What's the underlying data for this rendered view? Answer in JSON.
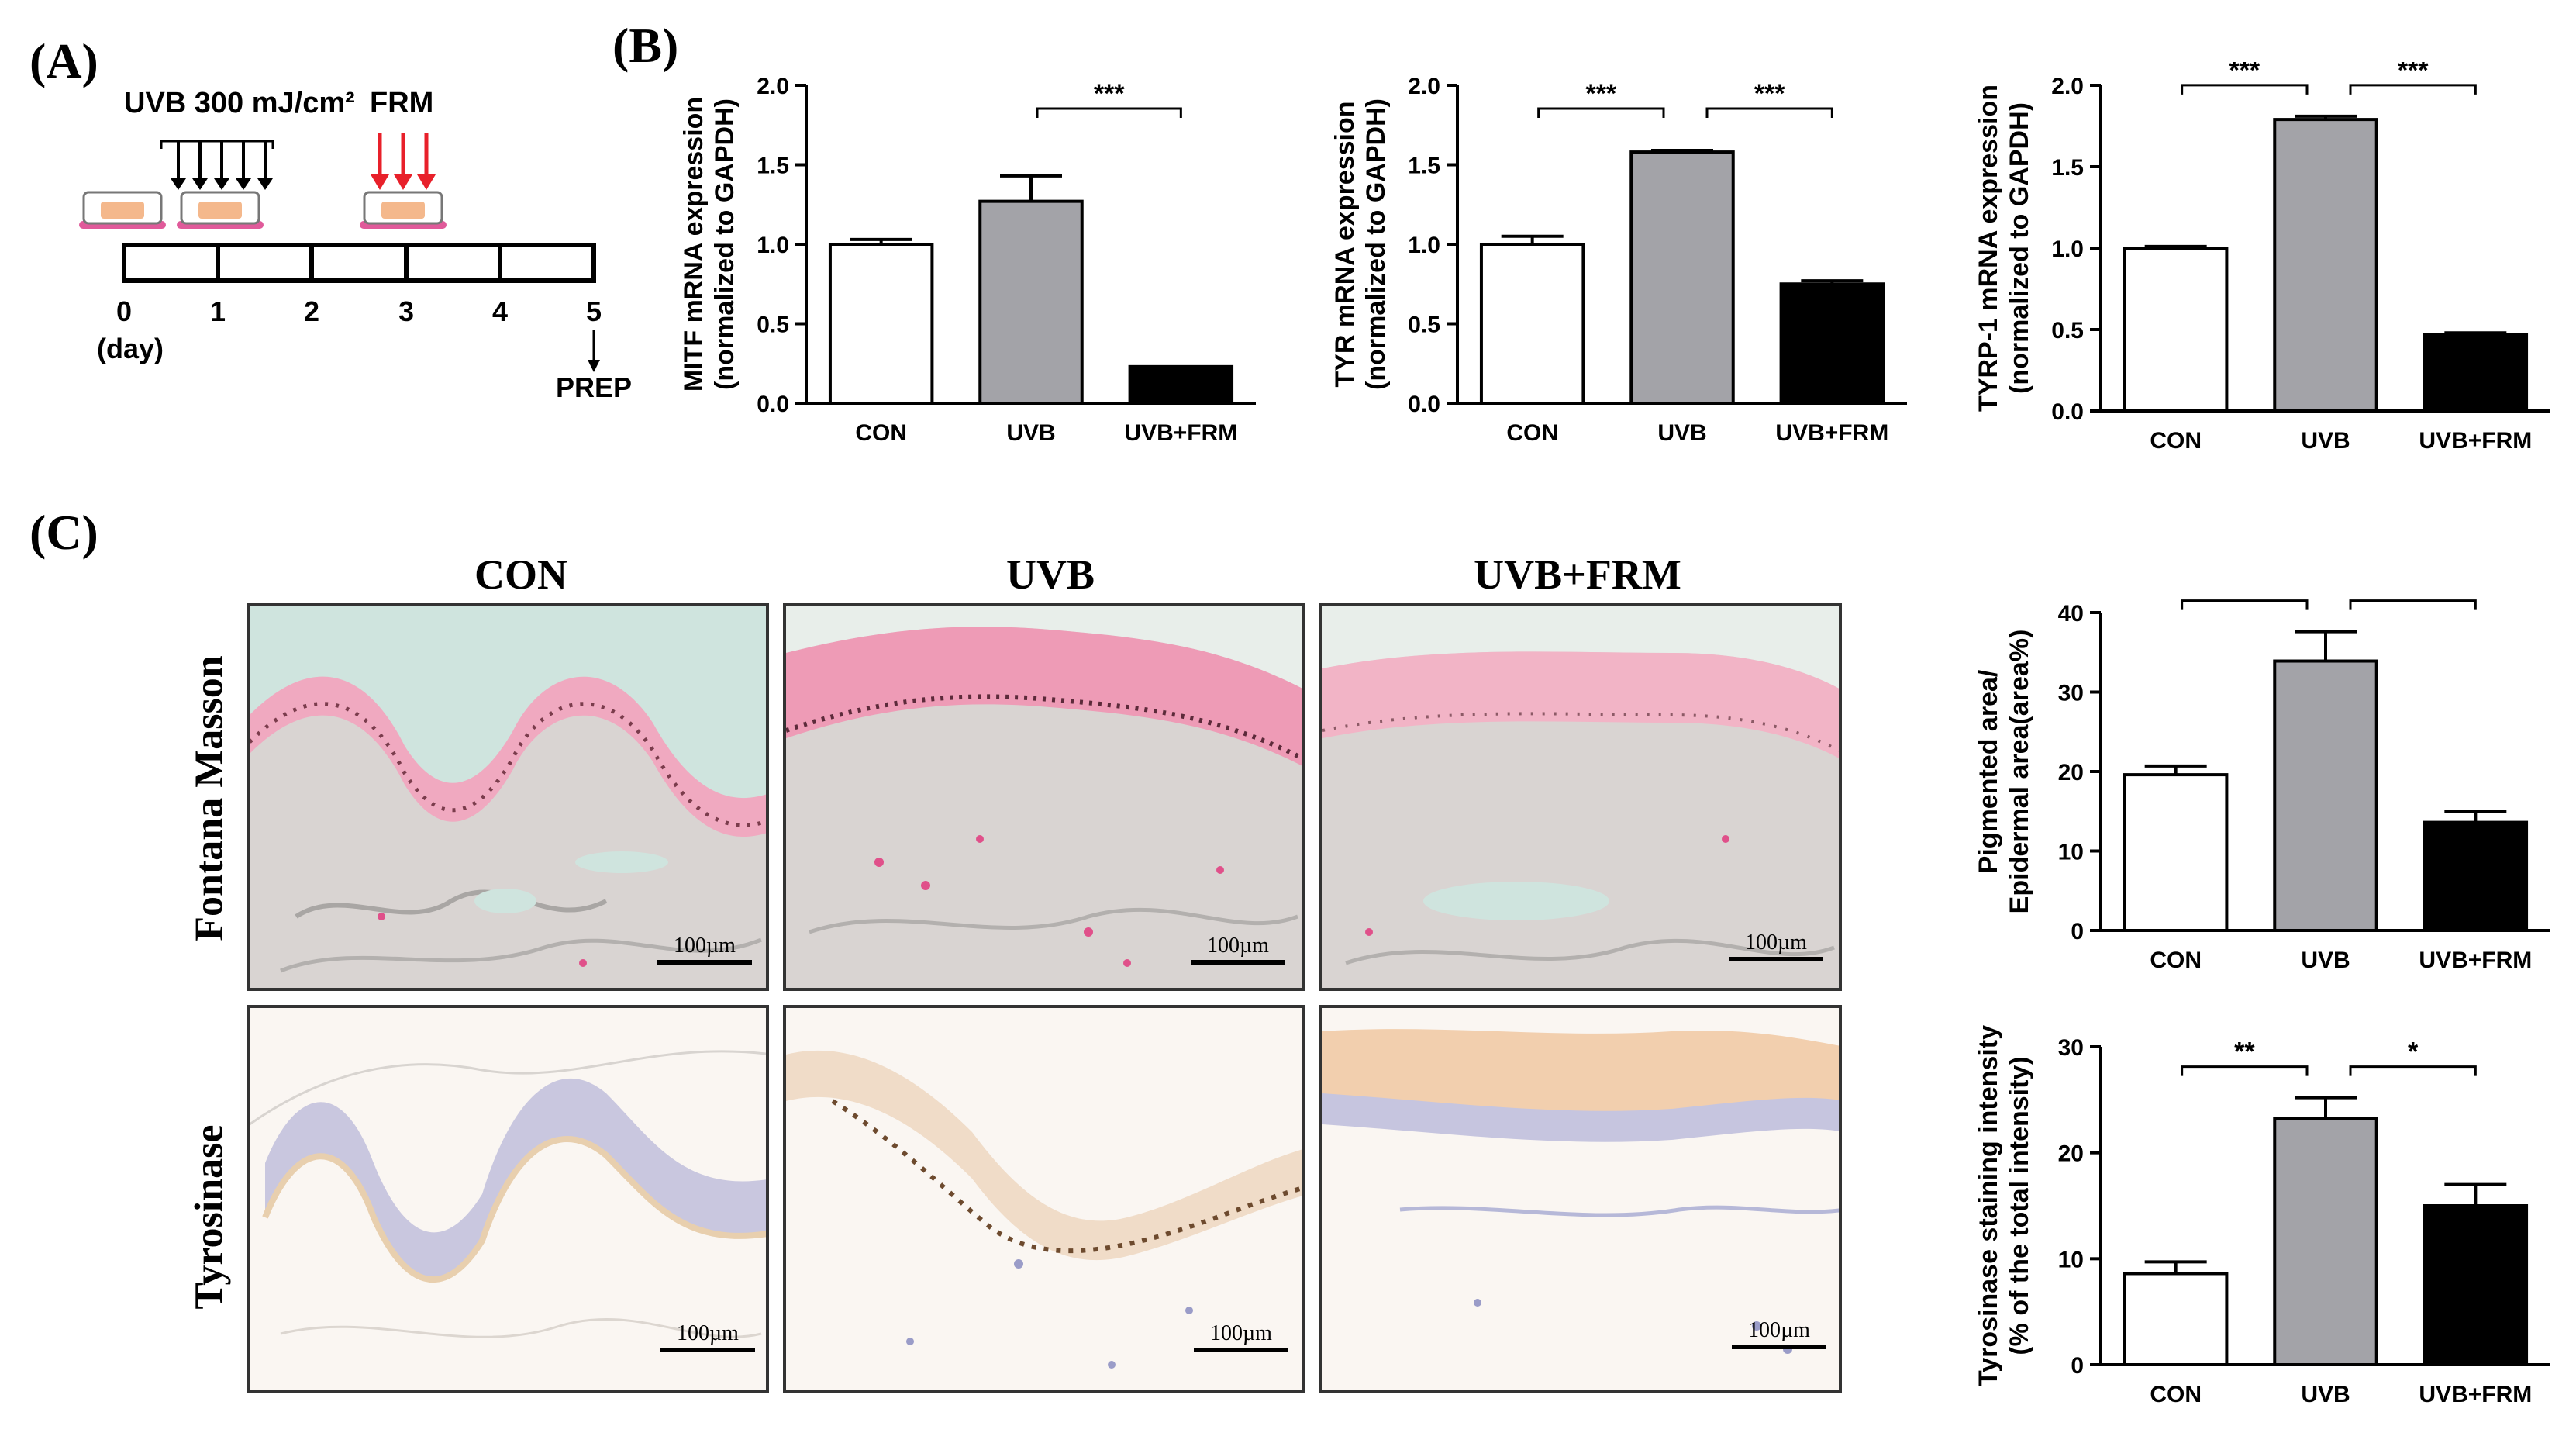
{
  "panels": {
    "a": "(A)",
    "b": "(B)",
    "c": "(C)"
  },
  "timeline": {
    "uvb_label": "UVB 300 mJ/cm²",
    "frm_label": "FRM",
    "days": [
      "0",
      "1",
      "2",
      "3",
      "4",
      "5"
    ],
    "day_unit": "(day)",
    "prep_label": "PREP",
    "colors": {
      "frm_arrow": "#e8202a",
      "dish_pink": "#e05a9a",
      "tissue": "#f4b88c"
    }
  },
  "histology": {
    "columns": [
      "CON",
      "UVB",
      "UVB+FRM"
    ],
    "rows": [
      "Fontana Masson",
      "Tyrosinase"
    ],
    "scale_label": "100µm"
  },
  "colors": {
    "con": "#ffffff",
    "uvb": "#a3a3a8",
    "frm": "#000000",
    "stroke": "#000000"
  },
  "chart_data": [
    {
      "type": "bar",
      "id": "mitf",
      "categories": [
        "CON",
        "UVB",
        "UVB+FRM"
      ],
      "values": [
        1.0,
        1.27,
        0.23
      ],
      "errors": [
        0.03,
        0.16,
        0.0
      ],
      "ylabel": [
        "MITF mRNA expression",
        "(normalized to GAPDH)"
      ],
      "ylim": [
        0,
        2.0
      ],
      "yticks": [
        "0.0",
        "0.5",
        "1.0",
        "1.5",
        "2.0"
      ],
      "significance": [
        {
          "from": 1,
          "to": 2,
          "label": "***"
        }
      ]
    },
    {
      "type": "bar",
      "id": "tyr",
      "categories": [
        "CON",
        "UVB",
        "UVB+FRM"
      ],
      "values": [
        1.0,
        1.58,
        0.75
      ],
      "errors": [
        0.05,
        0.01,
        0.02
      ],
      "ylabel": [
        "TYR mRNA expression",
        "(normalized to GAPDH)"
      ],
      "ylim": [
        0,
        2.0
      ],
      "yticks": [
        "0.0",
        "0.5",
        "1.0",
        "1.5",
        "2.0"
      ],
      "significance": [
        {
          "from": 0,
          "to": 1,
          "label": "***"
        },
        {
          "from": 1,
          "to": 2,
          "label": "***"
        }
      ]
    },
    {
      "type": "bar",
      "id": "tyrp1",
      "categories": [
        "CON",
        "UVB",
        "UVB+FRM"
      ],
      "values": [
        1.0,
        1.79,
        0.47
      ],
      "errors": [
        0.01,
        0.02,
        0.01
      ],
      "ylabel": [
        "TYRP-1 mRNA expression",
        "(normalized to GAPDH)"
      ],
      "ylim": [
        0,
        2.0
      ],
      "yticks": [
        "0.0",
        "0.5",
        "1.0",
        "1.5",
        "2.0"
      ],
      "significance": [
        {
          "from": 0,
          "to": 1,
          "label": "***"
        },
        {
          "from": 1,
          "to": 2,
          "label": "***"
        }
      ]
    },
    {
      "type": "bar",
      "id": "pigment",
      "categories": [
        "CON",
        "UVB",
        "UVB+FRM"
      ],
      "values": [
        19.6,
        33.9,
        13.6
      ],
      "errors": [
        1.1,
        3.7,
        1.4
      ],
      "ylabel": [
        "Pigmented area/",
        "Epidermal area(area%)"
      ],
      "ylim": [
        0,
        40
      ],
      "yticks": [
        "0",
        "10",
        "20",
        "30",
        "40"
      ],
      "significance": [
        {
          "from": 0,
          "to": 1,
          "label": "*"
        },
        {
          "from": 1,
          "to": 2,
          "label": "*"
        }
      ]
    },
    {
      "type": "bar",
      "id": "tyrosinase",
      "categories": [
        "CON",
        "UVB",
        "UVB+FRM"
      ],
      "values": [
        8.6,
        23.2,
        15.0
      ],
      "errors": [
        1.1,
        2.0,
        2.0
      ],
      "ylabel": [
        "Tyrosinase staining intensity",
        "(% of the total intensity)"
      ],
      "ylim": [
        0,
        30
      ],
      "yticks": [
        "0",
        "10",
        "20",
        "30"
      ],
      "significance": [
        {
          "from": 0,
          "to": 1,
          "label": "**"
        },
        {
          "from": 1,
          "to": 2,
          "label": "*"
        }
      ]
    }
  ]
}
